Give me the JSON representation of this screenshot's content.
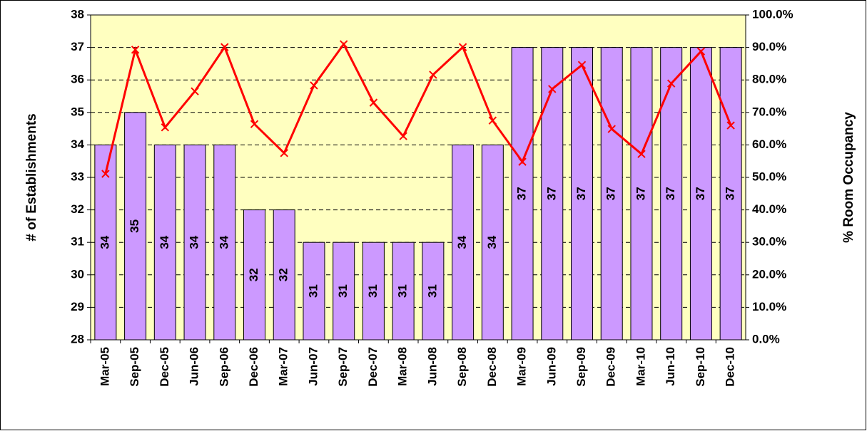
{
  "chart_data": {
    "type": "bar_line",
    "ylabel": "# of Establishments",
    "y2label": "% Room Occupancy",
    "categories": [
      "Mar-05",
      "Sep-05",
      "Dec-05",
      "Jun-06",
      "Sep-06",
      "Dec-06",
      "Mar-07",
      "Jun-07",
      "Sep-07",
      "Dec-07",
      "Mar-08",
      "Jun-08",
      "Sep-08",
      "Dec-08",
      "Mar-09",
      "Jun-09",
      "Sep-09",
      "Dec-09",
      "Mar-10",
      "Jun-10",
      "Sep-10",
      "Dec-10"
    ],
    "series": [
      {
        "type": "bar",
        "color": "#cc99ff",
        "axis": "y",
        "data_labels": true,
        "values": [
          34,
          35,
          34,
          34,
          34,
          32,
          32,
          31,
          31,
          31,
          31,
          31,
          34,
          34,
          37,
          37,
          37,
          37,
          37,
          37,
          37,
          37
        ]
      },
      {
        "type": "line",
        "color": "#ff0000",
        "axis": "y2",
        "marker": "x",
        "values": [
          51.1,
          89.3,
          65.4,
          76.5,
          90.1,
          66.4,
          57.5,
          78.3,
          91.0,
          73.0,
          62.7,
          81.6,
          90.1,
          67.5,
          54.8,
          77.2,
          84.6,
          64.9,
          57.2,
          78.9,
          88.8,
          66.0
        ]
      }
    ],
    "ylim": [
      28,
      38
    ],
    "yticks": [
      28,
      29,
      30,
      31,
      32,
      33,
      34,
      35,
      36,
      37,
      38
    ],
    "y2lim": [
      0,
      100
    ],
    "y2ticks": [
      {
        "value": 0,
        "label": "0.0%"
      },
      {
        "value": 10,
        "label": "10.0%"
      },
      {
        "value": 20,
        "label": "20.0%"
      },
      {
        "value": 30,
        "label": "30.0%"
      },
      {
        "value": 40,
        "label": "40.0%"
      },
      {
        "value": 50,
        "label": "50.0%"
      },
      {
        "value": 60,
        "label": "60.0%"
      },
      {
        "value": 70,
        "label": "70.0%"
      },
      {
        "value": 80,
        "label": "80.0%"
      },
      {
        "value": 90,
        "label": "90.0%"
      },
      {
        "value": 100,
        "label": "100.0%"
      }
    ],
    "grid": true,
    "plot_background": "#ffffc0"
  }
}
